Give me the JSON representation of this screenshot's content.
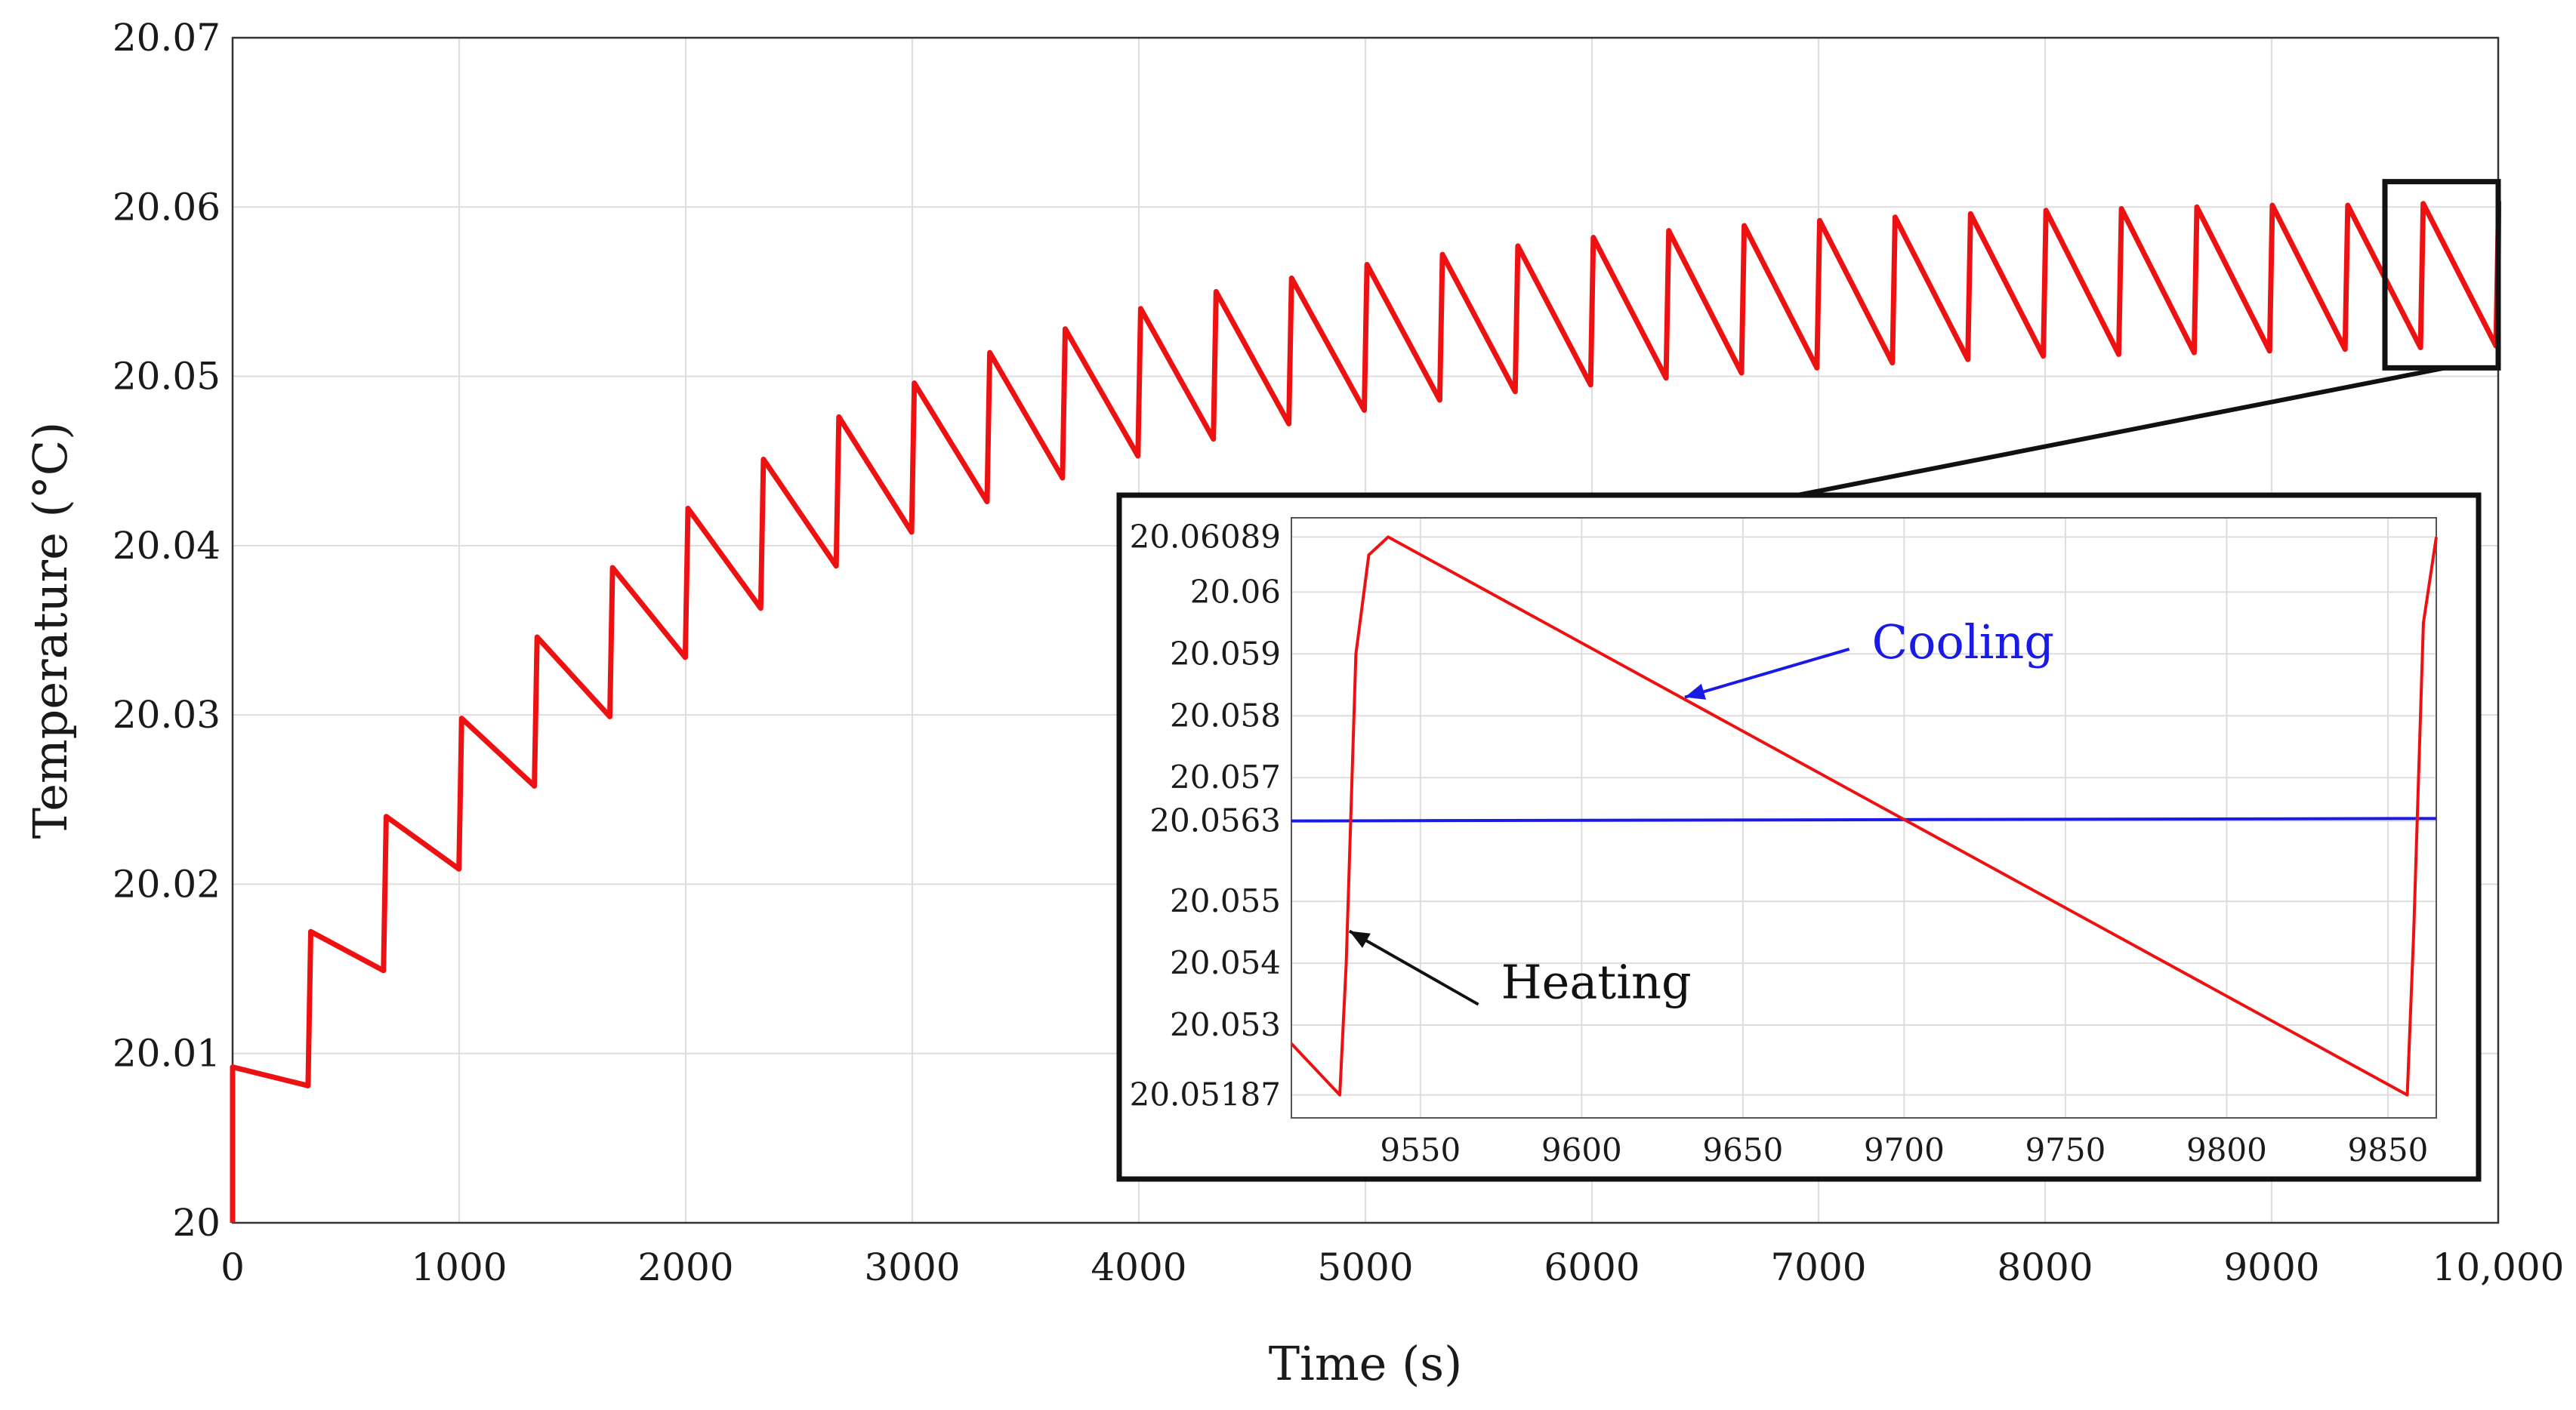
{
  "chart_data": [
    {
      "id": "main",
      "type": "line",
      "title": "",
      "xlabel": "Time (s)",
      "ylabel": "Temperature (°C)",
      "xlim": [
        0,
        10000
      ],
      "ylim": [
        20,
        20.07
      ],
      "grid": true,
      "x_ticks": [
        0,
        1000,
        2000,
        3000,
        4000,
        5000,
        6000,
        7000,
        8000,
        9000,
        10000
      ],
      "x_tick_labels": [
        "0",
        "1000",
        "2000",
        "3000",
        "4000",
        "5000",
        "6000",
        "7000",
        "8000",
        "9000",
        "10,000"
      ],
      "y_ticks": [
        20,
        20.01,
        20.02,
        20.03,
        20.04,
        20.05,
        20.06,
        20.07
      ],
      "y_tick_labels": [
        "20",
        "20.01",
        "20.02",
        "20.03",
        "20.04",
        "20.05",
        "20.06",
        "20.07"
      ],
      "line_color": "#ee1111",
      "series": [
        {
          "name": "Temperature",
          "color": "#ee1111",
          "cycle_period_s": 333,
          "peaks": [
            20.0092,
            20.0172,
            20.024,
            20.0298,
            20.0346,
            20.0387,
            20.0422,
            20.0451,
            20.0476,
            20.0496,
            20.0514,
            20.0528,
            20.054,
            20.055,
            20.0558,
            20.0566,
            20.0572,
            20.0577,
            20.0582,
            20.0586,
            20.0589,
            20.0592,
            20.0594,
            20.0596,
            20.0598,
            20.0599,
            20.06,
            20.0601,
            20.0601,
            20.0602,
            20.0603
          ],
          "troughs": [
            20.0081,
            20.0149,
            20.0209,
            20.0258,
            20.0299,
            20.0334,
            20.0363,
            20.0388,
            20.0408,
            20.0426,
            20.044,
            20.0453,
            20.0463,
            20.0472,
            20.048,
            20.0486,
            20.0491,
            20.0495,
            20.0499,
            20.0502,
            20.0505,
            20.0508,
            20.051,
            20.0512,
            20.0513,
            20.0514,
            20.0515,
            20.0516,
            20.0517,
            20.0518
          ],
          "end_value": 20.0567
        }
      ],
      "zoom_box": {
        "x_range": [
          9500,
          10000
        ],
        "y_range": [
          20.0505,
          20.0615
        ]
      }
    },
    {
      "id": "inset",
      "type": "line",
      "xlim": [
        9510,
        9865
      ],
      "ylim": [
        20.0515,
        20.0612
      ],
      "grid": true,
      "x_ticks": [
        9550,
        9600,
        9650,
        9700,
        9750,
        9800,
        9850
      ],
      "x_tick_labels": [
        "9550",
        "9600",
        "9650",
        "9700",
        "9750",
        "9800",
        "9850"
      ],
      "y_ticks": [
        20.05187,
        20.053,
        20.054,
        20.055,
        20.0563,
        20.057,
        20.058,
        20.059,
        20.06,
        20.06089
      ],
      "y_tick_labels": [
        "20.05187",
        "20.053",
        "20.054",
        "20.055",
        "20.0563",
        "20.057",
        "20.058",
        "20.059",
        "20.06",
        "20.06089"
      ],
      "series": [
        {
          "name": "Temperature",
          "color": "#ee1111",
          "points": [
            [
              9510,
              20.0527
            ],
            [
              9525,
              20.05187
            ],
            [
              9527,
              20.054
            ],
            [
              9530,
              20.059
            ],
            [
              9534,
              20.0606
            ],
            [
              9540,
              20.06089
            ],
            [
              9856,
              20.05187
            ],
            [
              9858,
              20.0545
            ],
            [
              9861,
              20.0595
            ],
            [
              9865,
              20.06089
            ]
          ]
        },
        {
          "name": "Cooling level",
          "color": "#1a1ae6",
          "points": [
            [
              9510,
              20.0563
            ],
            [
              9865,
              20.05634
            ]
          ]
        }
      ],
      "annotations": [
        {
          "text": "Cooling",
          "color": "#1a1ae6",
          "target": [
            9632,
            20.0583
          ],
          "label_pos": [
            9690,
            20.0592
          ]
        },
        {
          "text": "Heating",
          "color": "#111111",
          "target": [
            9528,
            20.05452
          ],
          "label_pos": [
            9575,
            20.0537
          ]
        }
      ]
    }
  ]
}
